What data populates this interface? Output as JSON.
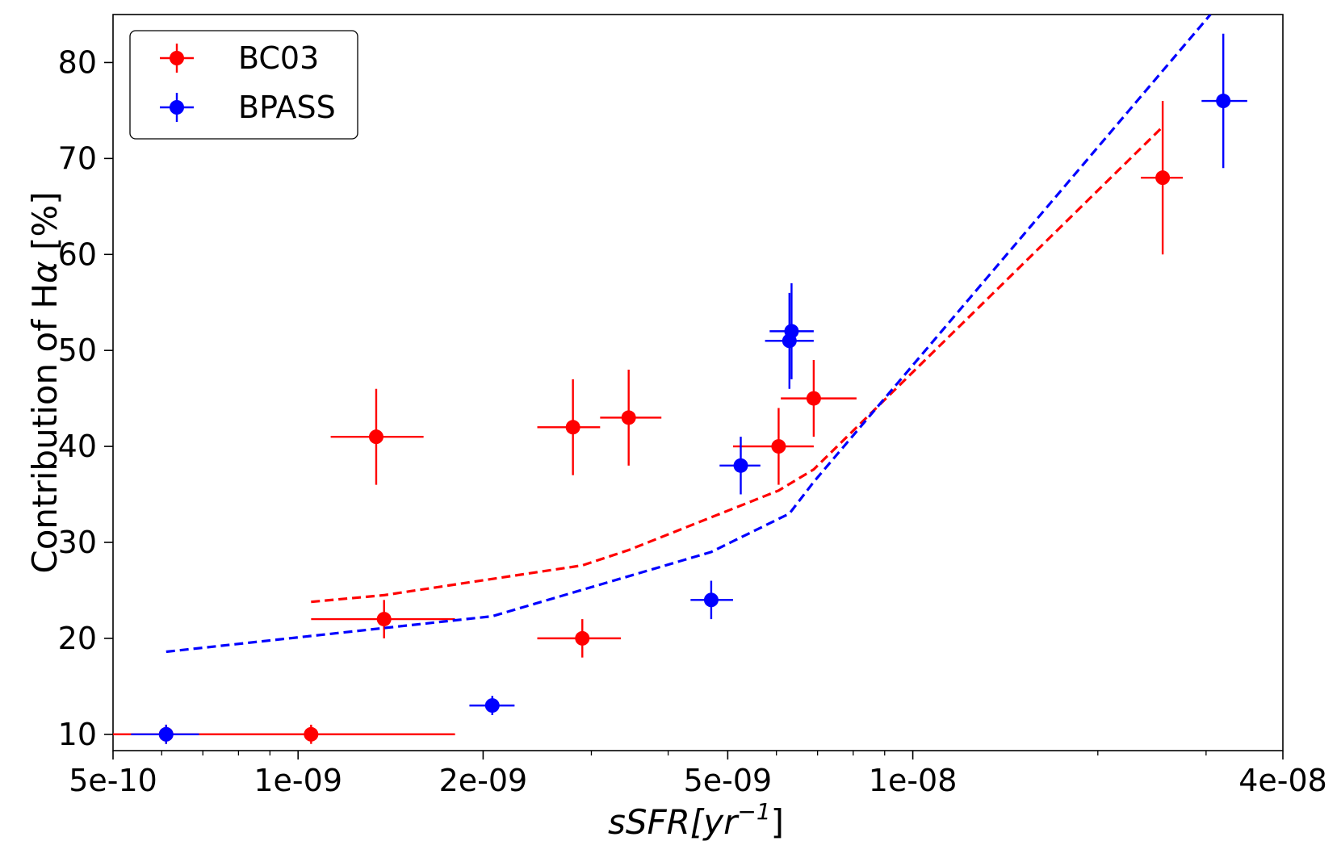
{
  "chart_data": {
    "type": "scatter",
    "xscale": "log",
    "xlim": [
      5e-10,
      4e-08
    ],
    "ylim": [
      8.3,
      85
    ],
    "xticks": [
      {
        "value": 5e-10,
        "label": "5e-10"
      },
      {
        "value": 1e-09,
        "label": "1e-09"
      },
      {
        "value": 2e-09,
        "label": "2e-09"
      },
      {
        "value": 5e-09,
        "label": "5e-09"
      },
      {
        "value": 1e-08,
        "label": "1e-08"
      },
      {
        "value": 4e-08,
        "label": "4e-08"
      }
    ],
    "yticks": [
      {
        "value": 10,
        "label": "10"
      },
      {
        "value": 20,
        "label": "20"
      },
      {
        "value": 30,
        "label": "30"
      },
      {
        "value": 40,
        "label": "40"
      },
      {
        "value": 50,
        "label": "50"
      },
      {
        "value": 60,
        "label": "60"
      },
      {
        "value": 70,
        "label": "70"
      },
      {
        "value": 80,
        "label": "80"
      }
    ],
    "xlabel": {
      "main": "sSFR[yr",
      "sup": "−1",
      "close": "]"
    },
    "ylabel": {
      "prefix": "Contribution of H",
      "greek": "α",
      "suffix": " [%]"
    },
    "legend_position": "top-left",
    "series": [
      {
        "name": "BC03",
        "color": "#ff0000",
        "points": [
          {
            "x": 6.1e-10,
            "y": 10,
            "xlo": 5e-10,
            "xhi": 1.8e-09,
            "ylo": 9,
            "yhi": 11
          },
          {
            "x": 1.05e-09,
            "y": 10,
            "xlo": 5e-10,
            "xhi": 1.8e-09,
            "ylo": 9,
            "yhi": 11
          },
          {
            "x": 1.38e-09,
            "y": 22,
            "xlo": 1.05e-09,
            "xhi": 1.8e-09,
            "ylo": 20,
            "yhi": 24
          },
          {
            "x": 1.34e-09,
            "y": 41,
            "xlo": 1.13e-09,
            "xhi": 1.6e-09,
            "ylo": 36,
            "yhi": 46
          },
          {
            "x": 2.9e-09,
            "y": 20,
            "xlo": 2.45e-09,
            "xhi": 3.35e-09,
            "ylo": 18,
            "yhi": 22
          },
          {
            "x": 2.8e-09,
            "y": 42,
            "xlo": 2.45e-09,
            "xhi": 3.1e-09,
            "ylo": 37,
            "yhi": 47
          },
          {
            "x": 3.45e-09,
            "y": 43,
            "xlo": 3.1e-09,
            "xhi": 3.9e-09,
            "ylo": 38,
            "yhi": 48
          },
          {
            "x": 6.05e-09,
            "y": 40,
            "xlo": 5.1e-09,
            "xhi": 6.9e-09,
            "ylo": 36,
            "yhi": 44
          },
          {
            "x": 6.9e-09,
            "y": 45,
            "xlo": 6.1e-09,
            "xhi": 8.1e-09,
            "ylo": 41,
            "yhi": 49
          },
          {
            "x": 2.55e-08,
            "y": 68,
            "xlo": 2.35e-08,
            "xhi": 2.75e-08,
            "ylo": 60,
            "yhi": 76
          }
        ],
        "model_line": {
          "x": [
            1.05e-09,
            1.38e-09,
            2.9e-09,
            3.45e-09,
            6.05e-09,
            6.9e-09,
            2.55e-08
          ],
          "y": [
            23.8,
            24.5,
            27.6,
            29.2,
            35.4,
            37.6,
            73.3
          ]
        }
      },
      {
        "name": "BPASS",
        "color": "#0000ff",
        "points": [
          {
            "x": 6.1e-10,
            "y": 10,
            "xlo": 5.35e-10,
            "xhi": 6.9e-10,
            "ylo": 9,
            "yhi": 11
          },
          {
            "x": 2.07e-09,
            "y": 13,
            "xlo": 1.9e-09,
            "xhi": 2.25e-09,
            "ylo": 12,
            "yhi": 14
          },
          {
            "x": 4.7e-09,
            "y": 24,
            "xlo": 4.35e-09,
            "xhi": 5.1e-09,
            "ylo": 22,
            "yhi": 26
          },
          {
            "x": 5.25e-09,
            "y": 38,
            "xlo": 4.85e-09,
            "xhi": 5.65e-09,
            "ylo": 35,
            "yhi": 41
          },
          {
            "x": 6.3e-09,
            "y": 51,
            "xlo": 5.75e-09,
            "xhi": 6.9e-09,
            "ylo": 46,
            "yhi": 56
          },
          {
            "x": 6.35e-09,
            "y": 52,
            "xlo": 5.85e-09,
            "xhi": 6.9e-09,
            "ylo": 47,
            "yhi": 57
          },
          {
            "x": 3.2e-08,
            "y": 76,
            "xlo": 2.95e-08,
            "xhi": 3.5e-08,
            "ylo": 69,
            "yhi": 83
          }
        ],
        "model_line": {
          "x": [
            6.1e-10,
            2.07e-09,
            4.7e-09,
            6.3e-09,
            6.9e-09,
            3.05e-08
          ],
          "y": [
            18.6,
            22.3,
            29.0,
            33.0,
            36.3,
            85
          ]
        }
      }
    ]
  }
}
